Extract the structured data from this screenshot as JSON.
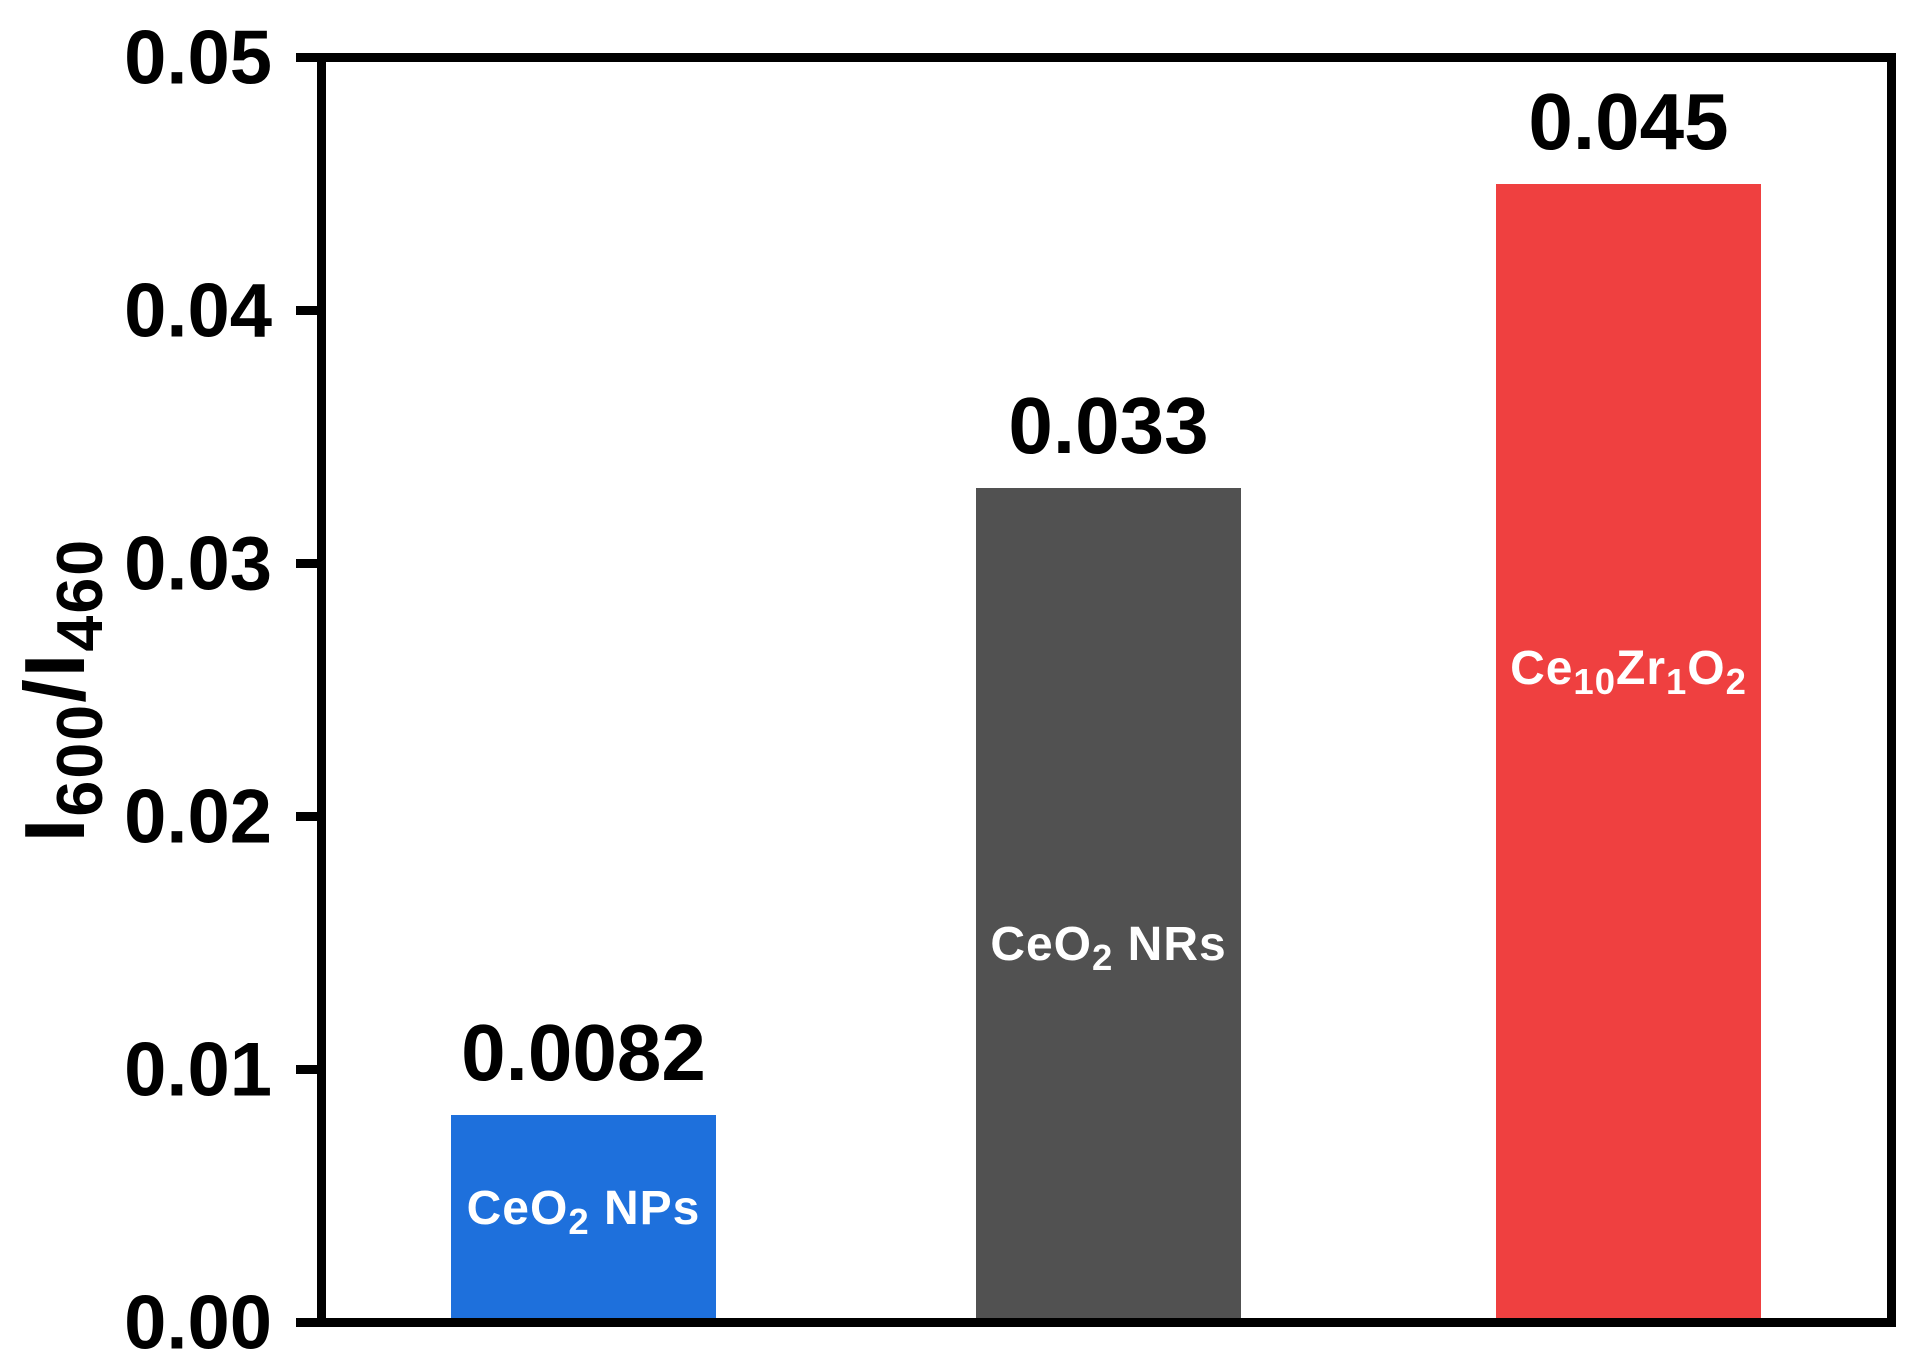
{
  "chart_data": {
    "type": "bar",
    "title": "",
    "xlabel": "",
    "ylabel_plain": "I600/I460",
    "ylabel_segments": [
      [
        "I",
        false
      ],
      [
        "600",
        true
      ],
      [
        "/I",
        false
      ],
      [
        "460",
        true
      ]
    ],
    "ylim": [
      0,
      0.05
    ],
    "y_ticks": [
      "0.00",
      "0.01",
      "0.02",
      "0.03",
      "0.04",
      "0.05"
    ],
    "grid": false,
    "legend_position": "none",
    "axis_color": "#000000",
    "value_label_color": "#000000",
    "bar_label_color": "#ffffff",
    "categories": [
      "CeO2 NPs",
      "CeO2 NRs",
      "Ce10Zr1O2"
    ],
    "values": [
      0.0082,
      0.033,
      0.045
    ],
    "bars": [
      {
        "category_plain": "CeO2 NPs",
        "label_segments": [
          [
            "CeO",
            false
          ],
          [
            "2",
            true
          ],
          [
            " NPs",
            false
          ]
        ],
        "value": 0.0082,
        "value_label": "0.0082",
        "color": "#1E70DC"
      },
      {
        "category_plain": "CeO2 NRs",
        "label_segments": [
          [
            "CeO",
            false
          ],
          [
            "2",
            true
          ],
          [
            " NRs",
            false
          ]
        ],
        "value": 0.033,
        "value_label": "0.033",
        "color": "#515151"
      },
      {
        "category_plain": "Ce10Zr1O2",
        "label_segments": [
          [
            "Ce",
            false
          ],
          [
            "10",
            true
          ],
          [
            "Zr",
            false
          ],
          [
            "1",
            true
          ],
          [
            "O",
            false
          ],
          [
            "2",
            true
          ]
        ],
        "value": 0.045,
        "value_label": "0.045",
        "color": "#EF4040"
      }
    ]
  }
}
